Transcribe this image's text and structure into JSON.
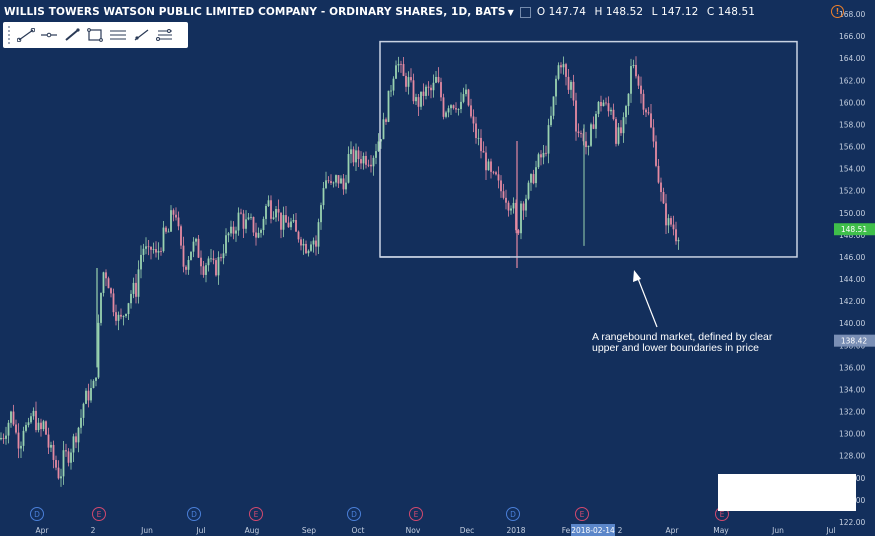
{
  "header": {
    "title": "WILLIS TOWERS WATSON PUBLIC LIMITED COMPANY - ORDINARY SHARES, 1D, BATS",
    "ohlc": {
      "open": "O 147.74",
      "high": "H 148.52",
      "low": "L 147.12",
      "close": "C 148.51"
    }
  },
  "toolbar": {
    "tools": [
      {
        "name": "trend-line-tool",
        "icon": "trend-line-icon"
      },
      {
        "name": "horizontal-line-tool",
        "icon": "horizontal-line-icon"
      },
      {
        "name": "brush-tool",
        "icon": "brush-icon"
      },
      {
        "name": "rectangle-tool",
        "icon": "rectangle-icon"
      },
      {
        "name": "parallel-channel-tool",
        "icon": "parallel-channel-icon"
      },
      {
        "name": "ray-tool",
        "icon": "ray-icon"
      },
      {
        "name": "fib-tool",
        "icon": "fib-retracement-icon"
      }
    ]
  },
  "annotation": {
    "line1": "A rangebound market, defined by clear",
    "line2": "upper and lower boundaries in price"
  },
  "colors": {
    "background": "#132f5c",
    "up": "#9ad3b0",
    "down": "#e58aa2",
    "last_price": "#3fbf4a",
    "crosshair_price": "#7a8fb5",
    "date_highlight": "#5b86c9",
    "dividend": "#4a7fd8",
    "earnings": "#d2496e"
  },
  "chart_data": {
    "type": "candlestick",
    "title": "WILLIS TOWERS WATSON PUBLIC LIMITED COMPANY - ORDINARY SHARES, 1D, BATS",
    "ylim": [
      122,
      168
    ],
    "y_ticks": [
      "122.00",
      "124.00",
      "126.00",
      "128.00",
      "130.00",
      "132.00",
      "134.00",
      "136.00",
      "138.00",
      "140.00",
      "142.00",
      "144.00",
      "146.00",
      "148.00",
      "150.00",
      "152.00",
      "154.00",
      "156.00",
      "158.00",
      "160.00",
      "162.00",
      "164.00",
      "166.00",
      "168.00"
    ],
    "x_ticks": [
      "Apr",
      "2",
      "Jun",
      "Jul",
      "Aug",
      "Sep",
      "Oct",
      "Nov",
      "Dec",
      "2018",
      "Fe",
      "2",
      "Apr",
      "May",
      "Jun",
      "Jul"
    ],
    "last_price": "148.51",
    "crosshair_price": "138.42",
    "crosshair_date": "2018-02-14",
    "range_box": {
      "upper": 165.5,
      "lower": 146.0
    },
    "price_path": [
      [
        0,
        129.5
      ],
      [
        4,
        130
      ],
      [
        8,
        131
      ],
      [
        12,
        132
      ],
      [
        16,
        130
      ],
      [
        20,
        129
      ],
      [
        24,
        131
      ],
      [
        28,
        130
      ],
      [
        32,
        132
      ],
      [
        36,
        131
      ],
      [
        40,
        130
      ],
      [
        44,
        131
      ],
      [
        48,
        129
      ],
      [
        52,
        128
      ],
      [
        56,
        127
      ],
      [
        60,
        126
      ],
      [
        64,
        128
      ],
      [
        68,
        128
      ],
      [
        72,
        129
      ],
      [
        76,
        130
      ],
      [
        80,
        131
      ],
      [
        84,
        133
      ],
      [
        88,
        133.5
      ],
      [
        92,
        134
      ],
      [
        95,
        134.5
      ],
      [
        97,
        137
      ],
      [
        100,
        142
      ],
      [
        104,
        145
      ],
      [
        108,
        144
      ],
      [
        112,
        142
      ],
      [
        116,
        141
      ],
      [
        120,
        140
      ],
      [
        124,
        141
      ],
      [
        128,
        142
      ],
      [
        132,
        143
      ],
      [
        136,
        143
      ],
      [
        140,
        146
      ],
      [
        144,
        147
      ],
      [
        148,
        146
      ],
      [
        152,
        147
      ],
      [
        156,
        146
      ],
      [
        160,
        147
      ],
      [
        164,
        148
      ],
      [
        168,
        148
      ],
      [
        172,
        150
      ],
      [
        176,
        150
      ],
      [
        180,
        147
      ],
      [
        184,
        145
      ],
      [
        188,
        146
      ],
      [
        192,
        147
      ],
      [
        196,
        147
      ],
      [
        200,
        146
      ],
      [
        204,
        145
      ],
      [
        208,
        146
      ],
      [
        212,
        145
      ],
      [
        216,
        145
      ],
      [
        220,
        146
      ],
      [
        224,
        147
      ],
      [
        228,
        148
      ],
      [
        232,
        148
      ],
      [
        236,
        149
      ],
      [
        240,
        150
      ],
      [
        244,
        149
      ],
      [
        248,
        149
      ],
      [
        252,
        149
      ],
      [
        256,
        148
      ],
      [
        260,
        148
      ],
      [
        264,
        150
      ],
      [
        268,
        151
      ],
      [
        272,
        150
      ],
      [
        276,
        151
      ],
      [
        280,
        149
      ],
      [
        284,
        149
      ],
      [
        288,
        149
      ],
      [
        292,
        149
      ],
      [
        296,
        148
      ],
      [
        300,
        148
      ],
      [
        304,
        147
      ],
      [
        308,
        147
      ],
      [
        312,
        148
      ],
      [
        316,
        147
      ],
      [
        320,
        150
      ],
      [
        324,
        153
      ],
      [
        328,
        153
      ],
      [
        332,
        152
      ],
      [
        336,
        153
      ],
      [
        340,
        153
      ],
      [
        344,
        152
      ],
      [
        348,
        155
      ],
      [
        352,
        155
      ],
      [
        356,
        155
      ],
      [
        360,
        155
      ],
      [
        364,
        155
      ],
      [
        368,
        155
      ],
      [
        372,
        155
      ],
      [
        376,
        156
      ],
      [
        380,
        157
      ],
      [
        384,
        158
      ],
      [
        388,
        160
      ],
      [
        392,
        162
      ],
      [
        396,
        164
      ],
      [
        400,
        163
      ],
      [
        404,
        162
      ],
      [
        408,
        162
      ],
      [
        412,
        161
      ],
      [
        416,
        160
      ],
      [
        420,
        160
      ],
      [
        424,
        161
      ],
      [
        428,
        161
      ],
      [
        432,
        161
      ],
      [
        436,
        162
      ],
      [
        440,
        161
      ],
      [
        444,
        159
      ],
      [
        448,
        160
      ],
      [
        452,
        160
      ],
      [
        456,
        160
      ],
      [
        460,
        159
      ],
      [
        464,
        161
      ],
      [
        468,
        160
      ],
      [
        472,
        158
      ],
      [
        476,
        157
      ],
      [
        480,
        156
      ],
      [
        484,
        155
      ],
      [
        488,
        154
      ],
      [
        492,
        153
      ],
      [
        496,
        153
      ],
      [
        500,
        152
      ],
      [
        504,
        152
      ],
      [
        508,
        151
      ],
      [
        512,
        151
      ],
      [
        514,
        150
      ],
      [
        516,
        148
      ],
      [
        518,
        148
      ],
      [
        520,
        151
      ],
      [
        524,
        151
      ],
      [
        528,
        152
      ],
      [
        532,
        153
      ],
      [
        536,
        154
      ],
      [
        540,
        155
      ],
      [
        544,
        155
      ],
      [
        548,
        157
      ],
      [
        552,
        159
      ],
      [
        556,
        162
      ],
      [
        560,
        164
      ],
      [
        564,
        163
      ],
      [
        568,
        161
      ],
      [
        572,
        162
      ],
      [
        576,
        158
      ],
      [
        580,
        157
      ],
      [
        584,
        157
      ],
      [
        588,
        155
      ],
      [
        592,
        158
      ],
      [
        596,
        159
      ],
      [
        600,
        160
      ],
      [
        604,
        160
      ],
      [
        608,
        159
      ],
      [
        612,
        160
      ],
      [
        616,
        157
      ],
      [
        620,
        157
      ],
      [
        624,
        158
      ],
      [
        628,
        160
      ],
      [
        632,
        164
      ],
      [
        636,
        163
      ],
      [
        640,
        161
      ],
      [
        644,
        160
      ],
      [
        648,
        159
      ],
      [
        652,
        157
      ],
      [
        656,
        155
      ],
      [
        660,
        152
      ],
      [
        664,
        150
      ],
      [
        668,
        149
      ],
      [
        672,
        149
      ],
      [
        676,
        148
      ],
      [
        680,
        148.5
      ]
    ],
    "events": [
      {
        "label": "D",
        "kind": "dividend",
        "x": 37
      },
      {
        "label": "E",
        "kind": "earnings",
        "x": 99
      },
      {
        "label": "D",
        "kind": "dividend",
        "x": 194
      },
      {
        "label": "E",
        "kind": "earnings",
        "x": 256
      },
      {
        "label": "D",
        "kind": "dividend",
        "x": 354
      },
      {
        "label": "E",
        "kind": "earnings",
        "x": 416
      },
      {
        "label": "D",
        "kind": "dividend",
        "x": 513
      },
      {
        "label": "E",
        "kind": "earnings",
        "x": 582
      },
      {
        "label": "E",
        "kind": "earnings",
        "x": 722
      }
    ]
  }
}
